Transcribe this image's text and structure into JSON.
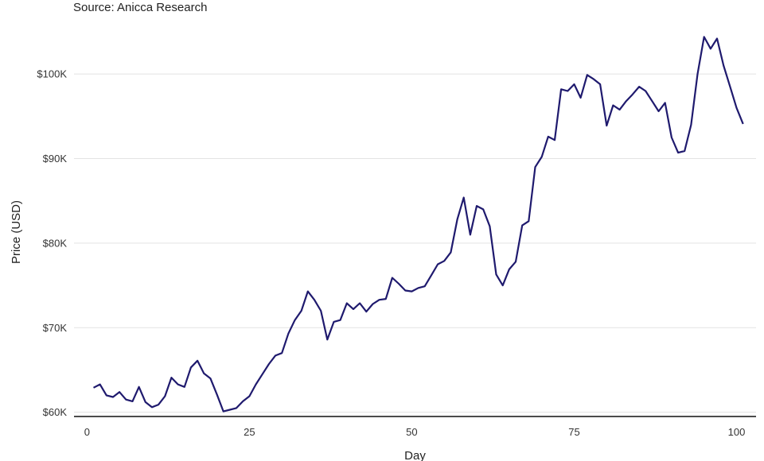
{
  "chart_data": {
    "type": "line",
    "subtitle": "Source: Anicca Research",
    "xlabel": "Day",
    "ylabel": "Price (USD)",
    "xlim": [
      -2,
      103
    ],
    "ylim": [
      59500,
      105000
    ],
    "x_ticks": [
      0,
      25,
      50,
      75,
      100
    ],
    "x_tick_labels": [
      "0",
      "25",
      "50",
      "75",
      "100"
    ],
    "y_ticks": [
      60000,
      70000,
      80000,
      90000,
      100000
    ],
    "y_tick_labels": [
      "$60K",
      "$70K",
      "$80K",
      "$90K",
      "$100K"
    ],
    "grid": "horizontal",
    "line_color": "#1f1a6e",
    "series": [
      {
        "x": [
          1,
          2,
          3,
          4,
          5,
          6,
          7,
          8,
          9,
          10,
          11,
          12,
          13,
          14,
          15,
          16,
          17,
          18,
          19,
          20,
          21,
          22,
          23,
          24,
          25,
          26,
          27,
          28,
          29,
          30,
          31,
          32,
          33,
          34,
          35,
          36,
          37,
          38,
          39,
          40,
          41,
          42,
          43,
          44,
          45,
          46,
          47,
          48,
          49,
          50,
          51,
          52,
          53,
          54,
          55,
          56,
          57,
          58,
          59,
          60,
          61,
          62,
          63,
          64,
          65,
          66,
          67,
          68,
          69,
          70,
          71,
          72,
          73,
          74,
          75,
          76,
          77,
          78,
          79,
          80,
          81,
          82,
          83,
          84,
          85,
          86,
          87,
          88,
          89,
          90,
          91,
          92,
          93,
          94,
          95,
          96,
          97,
          98,
          99,
          100,
          101
        ],
        "values": [
          62900,
          63300,
          62000,
          61800,
          62400,
          61500,
          61300,
          63000,
          61200,
          60600,
          60900,
          61900,
          64100,
          63300,
          63000,
          65300,
          66100,
          64600,
          64000,
          62100,
          60100,
          60300,
          60500,
          61300,
          61900,
          63300,
          64500,
          65700,
          66700,
          67000,
          69300,
          70900,
          72000,
          74300,
          73300,
          72000,
          68600,
          70700,
          70900,
          72900,
          72200,
          72900,
          71900,
          72800,
          73300,
          73400,
          75900,
          75200,
          74400,
          74300,
          74700,
          74900,
          76200,
          77500,
          77900,
          78900,
          82800,
          85400,
          81000,
          84400,
          84000,
          82000,
          76300,
          75000,
          76900,
          77800,
          82100,
          82600,
          89000,
          90200,
          92600,
          92200,
          98200,
          98000,
          98800,
          97200,
          99900,
          99400,
          98800,
          93900,
          96300,
          95800,
          96800,
          97600,
          98500,
          98000,
          96800,
          95600,
          96600,
          92500,
          90700,
          90900,
          94000,
          100000,
          104400,
          103000,
          104200,
          101000,
          98500,
          96000,
          94100
        ]
      }
    ]
  }
}
